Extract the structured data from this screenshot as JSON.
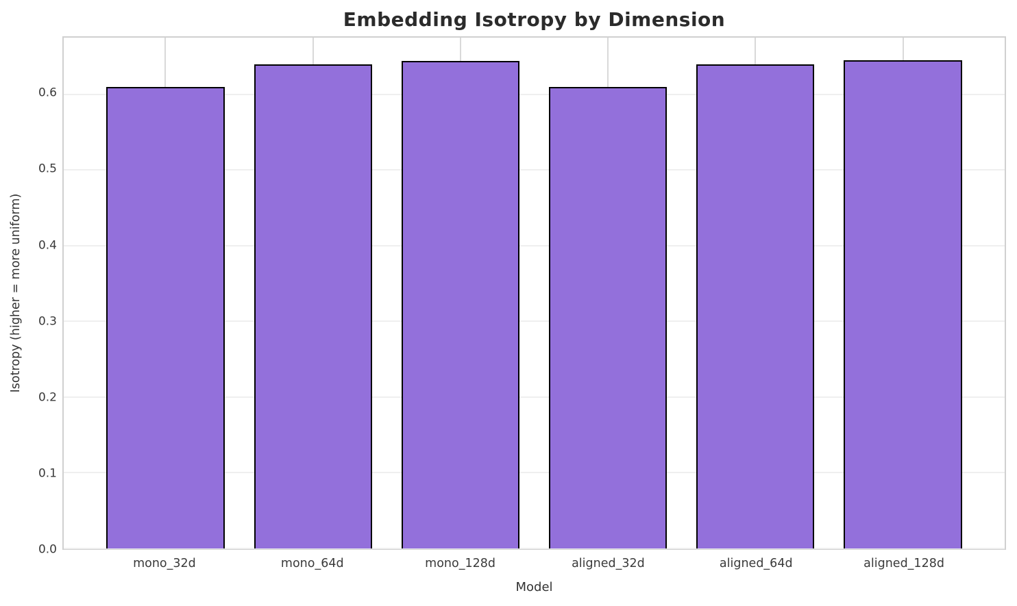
{
  "chart_data": {
    "type": "bar",
    "title": "Embedding Isotropy by Dimension",
    "xlabel": "Model",
    "ylabel": "Isotropy (higher = more uniform)",
    "categories": [
      "mono_32d",
      "mono_64d",
      "mono_128d",
      "aligned_32d",
      "aligned_64d",
      "aligned_128d"
    ],
    "values": [
      0.61,
      0.64,
      0.644,
      0.61,
      0.64,
      0.645
    ],
    "ylim": [
      0,
      0.675
    ],
    "yticks": [
      0.0,
      0.1,
      0.2,
      0.3,
      0.4,
      0.5,
      0.6
    ],
    "ytick_decimals": 1,
    "xlim": [
      -0.69,
      5.69
    ],
    "bar_width": 0.8,
    "grid": true,
    "legend": "none",
    "colors": {
      "bar_fill": "#9370DB",
      "bar_edge": "#000000",
      "grid_horizontal": "#efefef",
      "grid_vertical": "#d9d9d9",
      "spine": "#d0d0d0",
      "title_text": "#2b2b2b",
      "tick_text": "#3a3a3a",
      "label_text": "#333333",
      "background": "#ffffff"
    }
  }
}
